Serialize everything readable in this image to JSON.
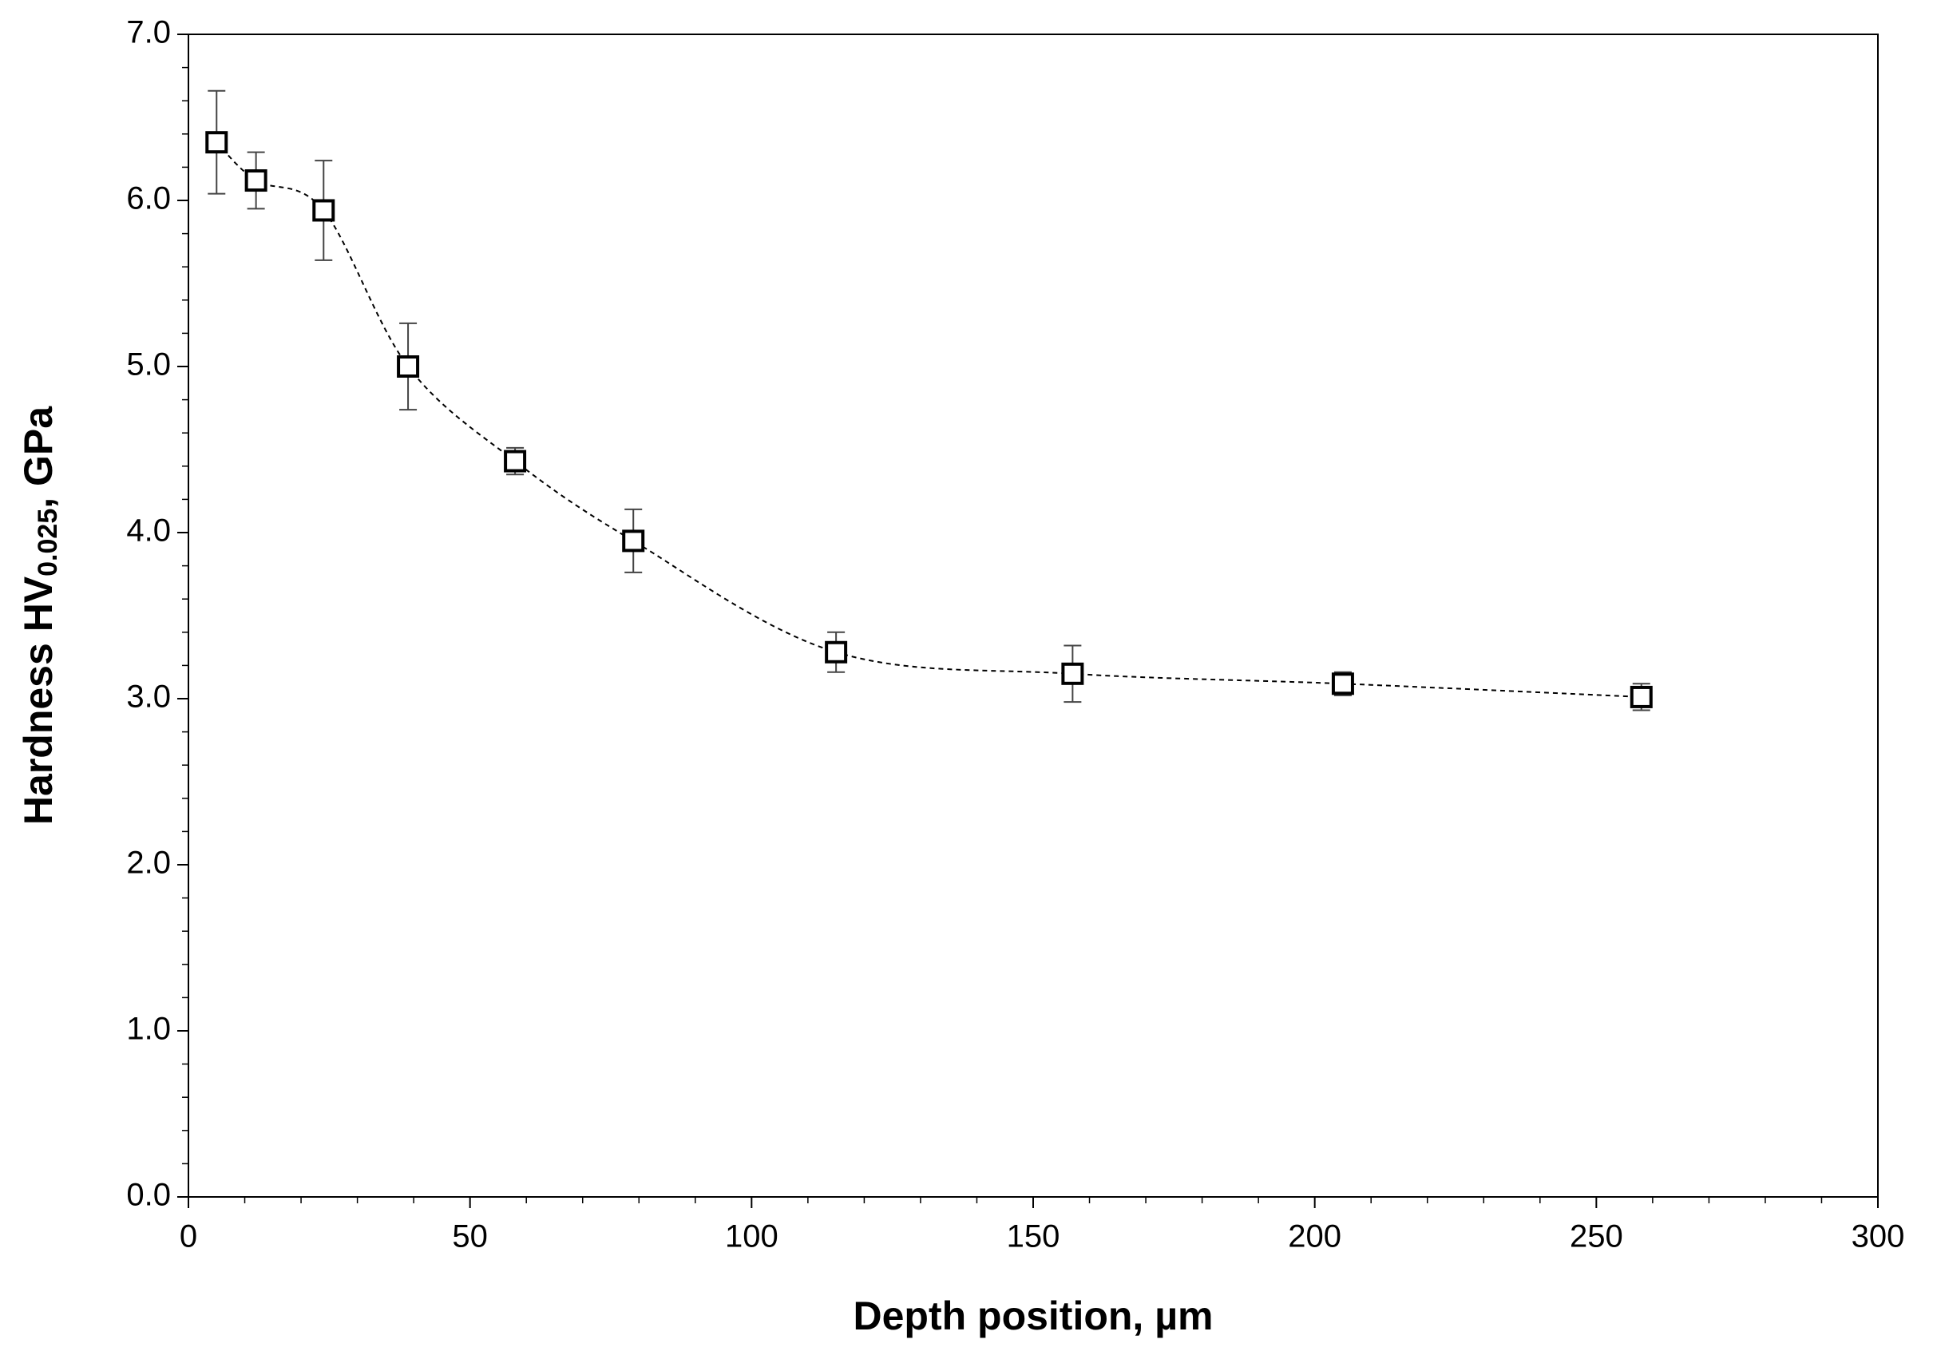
{
  "chart_data": {
    "type": "line",
    "x_label": "Depth position, µm",
    "y_label": {
      "text": "Hardness HV",
      "subscript": "0.025",
      "suffix": ", GPa"
    },
    "x": [
      5,
      12,
      24,
      39,
      58,
      79,
      115,
      157,
      205,
      258
    ],
    "values": [
      6.35,
      6.12,
      5.94,
      5.0,
      4.43,
      3.95,
      3.28,
      3.15,
      3.09,
      3.01
    ],
    "errors": [
      0.31,
      0.17,
      0.3,
      0.26,
      0.08,
      0.19,
      0.12,
      0.17,
      0.07,
      0.08
    ],
    "color": "#000000",
    "marker": "square",
    "line_style": "dashed",
    "xlim": [
      0,
      300
    ],
    "xticks": [
      0,
      50,
      100,
      150,
      200,
      250,
      300
    ],
    "xminorticks": [
      10,
      20,
      30,
      40,
      60,
      70,
      80,
      90,
      110,
      120,
      130,
      140,
      160,
      170,
      180,
      190,
      210,
      220,
      230,
      240,
      260,
      270,
      280,
      290
    ],
    "ylim": [
      0,
      7
    ],
    "yticks": [
      {
        "value": 0,
        "label": "0.0"
      },
      {
        "value": 1,
        "label": "1.0"
      },
      {
        "value": 2,
        "label": "2.0"
      },
      {
        "value": 3,
        "label": "3.0"
      },
      {
        "value": 4,
        "label": "4.0"
      },
      {
        "value": 5,
        "label": "5.0"
      },
      {
        "value": 6,
        "label": "6.0"
      },
      {
        "value": 7,
        "label": "7.0"
      }
    ],
    "yminorticks": [
      0.2,
      0.4,
      0.6,
      0.8,
      1.2,
      1.4,
      1.6,
      1.8,
      2.2,
      2.4,
      2.6,
      2.8,
      3.2,
      3.4,
      3.6,
      3.8,
      4.2,
      4.4,
      4.6,
      4.8,
      5.2,
      5.4,
      5.6,
      5.8,
      6.2,
      6.4,
      6.6,
      6.8
    ]
  }
}
